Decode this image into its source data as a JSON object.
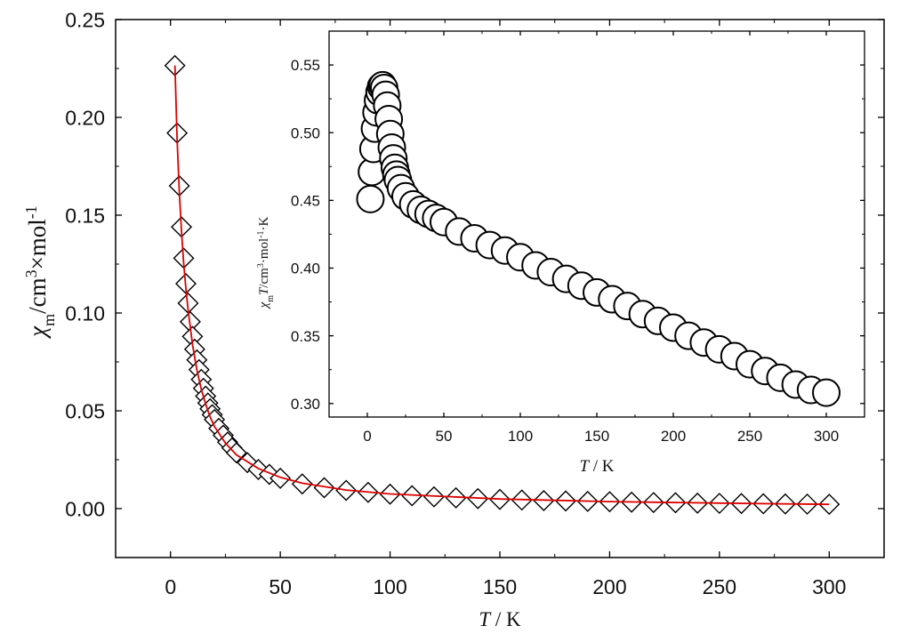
{
  "chart_data": [
    {
      "type": "scatter",
      "panel": "main",
      "xlabel": "T / K",
      "ylabel": "χm/cm3×mol-1",
      "xlim": [
        -25,
        325
      ],
      "ylim": [
        -0.025,
        0.25
      ],
      "xticks": [
        0,
        50,
        100,
        150,
        200,
        250,
        300
      ],
      "xtick_labels": [
        "0",
        "50",
        "100",
        "150",
        "200",
        "250",
        "300"
      ],
      "yticks": [
        0.0,
        0.05,
        0.1,
        0.15,
        0.2,
        0.25
      ],
      "ytick_labels": [
        "0.00",
        "0.05",
        "0.10",
        "0.15",
        "0.20",
        "0.25"
      ],
      "marker": "diamond",
      "series": [
        {
          "marker": "diamond",
          "color": "#000000",
          "points": [
            [
              2,
              0.2265
            ],
            [
              3,
              0.192
            ],
            [
              4,
              0.165
            ],
            [
              5,
              0.144
            ],
            [
              6,
              0.128
            ],
            [
              7,
              0.115
            ],
            [
              8,
              0.105
            ],
            [
              9,
              0.0955
            ],
            [
              10,
              0.088
            ],
            [
              11,
              0.0815
            ],
            [
              12,
              0.076
            ],
            [
              13,
              0.071
            ],
            [
              14,
              0.066
            ],
            [
              15,
              0.0615
            ],
            [
              16,
              0.0575
            ],
            [
              17,
              0.054
            ],
            [
              18,
              0.051
            ],
            [
              19,
              0.048
            ],
            [
              20,
              0.0455
            ],
            [
              22,
              0.041
            ],
            [
              24,
              0.0375
            ],
            [
              26,
              0.034
            ],
            [
              28,
              0.031
            ],
            [
              30,
              0.0285
            ],
            [
              35,
              0.0235
            ],
            [
              40,
              0.02
            ],
            [
              45,
              0.0175
            ],
            [
              50,
              0.0155
            ],
            [
              60,
              0.0126
            ],
            [
              70,
              0.0107
            ],
            [
              80,
              0.0093
            ],
            [
              90,
              0.0083
            ],
            [
              100,
              0.0074
            ],
            [
              110,
              0.0066
            ],
            [
              120,
              0.006
            ],
            [
              130,
              0.0055
            ],
            [
              140,
              0.0051
            ],
            [
              150,
              0.0047
            ],
            [
              160,
              0.0044
            ],
            [
              170,
              0.0041
            ],
            [
              180,
              0.0039
            ],
            [
              190,
              0.0037
            ],
            [
              200,
              0.0035
            ],
            [
              210,
              0.0033
            ],
            [
              220,
              0.0031
            ],
            [
              230,
              0.003
            ],
            [
              240,
              0.0028
            ],
            [
              250,
              0.0027
            ],
            [
              260,
              0.0026
            ],
            [
              270,
              0.0025
            ],
            [
              280,
              0.0024
            ],
            [
              290,
              0.0023
            ],
            [
              300,
              0.0022
            ]
          ]
        },
        {
          "style": "fit-line",
          "color": "#dd0000",
          "points": [
            [
              2,
              0.2265
            ],
            [
              3,
              0.189
            ],
            [
              4,
              0.162
            ],
            [
              5,
              0.1415
            ],
            [
              6,
              0.1255
            ],
            [
              7,
              0.1125
            ],
            [
              8,
              0.1015
            ],
            [
              10,
              0.084
            ],
            [
              12,
              0.071
            ],
            [
              14,
              0.061
            ],
            [
              16,
              0.0535
            ],
            [
              18,
              0.047
            ],
            [
              20,
              0.042
            ],
            [
              25,
              0.0335
            ],
            [
              30,
              0.0275
            ],
            [
              40,
              0.0205
            ],
            [
              50,
              0.016
            ],
            [
              60,
              0.013
            ],
            [
              80,
              0.0095
            ],
            [
              100,
              0.0075
            ],
            [
              150,
              0.0049
            ],
            [
              200,
              0.0036
            ],
            [
              250,
              0.0028
            ],
            [
              300,
              0.0022
            ]
          ]
        }
      ]
    },
    {
      "type": "scatter",
      "panel": "inset",
      "xlabel": "T / K",
      "ylabel": "χmT/cm3·mol-1·K",
      "xlim": [
        -25,
        325
      ],
      "ylim": [
        0.29,
        0.575
      ],
      "xticks": [
        0,
        50,
        100,
        150,
        200,
        250,
        300
      ],
      "xtick_labels": [
        "0",
        "50",
        "100",
        "150",
        "200",
        "250",
        "300"
      ],
      "yticks": [
        0.3,
        0.35,
        0.4,
        0.45,
        0.5,
        0.55
      ],
      "ytick_labels": [
        "0.30",
        "0.35",
        "0.40",
        "0.45",
        "0.50",
        "0.55"
      ],
      "marker": "circle",
      "series": [
        {
          "marker": "circle",
          "color": "#000000",
          "points": [
            [
              2,
              0.451
            ],
            [
              3,
              0.471
            ],
            [
              4,
              0.488
            ],
            [
              5,
              0.503
            ],
            [
              6,
              0.515
            ],
            [
              7,
              0.524
            ],
            [
              8,
              0.53
            ],
            [
              9,
              0.534
            ],
            [
              10,
              0.535
            ],
            [
              11,
              0.533
            ],
            [
              12,
              0.528
            ],
            [
              13,
              0.52
            ],
            [
              14,
              0.51
            ],
            [
              15,
              0.499
            ],
            [
              16,
              0.489
            ],
            [
              17,
              0.481
            ],
            [
              18,
              0.474
            ],
            [
              19,
              0.469
            ],
            [
              20,
              0.465
            ],
            [
              22,
              0.459
            ],
            [
              25,
              0.453
            ],
            [
              30,
              0.447
            ],
            [
              35,
              0.443
            ],
            [
              40,
              0.44
            ],
            [
              45,
              0.437
            ],
            [
              50,
              0.434
            ],
            [
              60,
              0.427
            ],
            [
              70,
              0.422
            ],
            [
              80,
              0.417
            ],
            [
              90,
              0.413
            ],
            [
              100,
              0.408
            ],
            [
              110,
              0.402
            ],
            [
              120,
              0.397
            ],
            [
              130,
              0.392
            ],
            [
              140,
              0.387
            ],
            [
              150,
              0.382
            ],
            [
              160,
              0.377
            ],
            [
              170,
              0.372
            ],
            [
              180,
              0.366
            ],
            [
              190,
              0.361
            ],
            [
              200,
              0.356
            ],
            [
              210,
              0.35
            ],
            [
              220,
              0.345
            ],
            [
              230,
              0.34
            ],
            [
              240,
              0.335
            ],
            [
              250,
              0.329
            ],
            [
              260,
              0.324
            ],
            [
              270,
              0.319
            ],
            [
              280,
              0.314
            ],
            [
              290,
              0.31
            ],
            [
              300,
              0.308
            ]
          ]
        }
      ]
    }
  ]
}
